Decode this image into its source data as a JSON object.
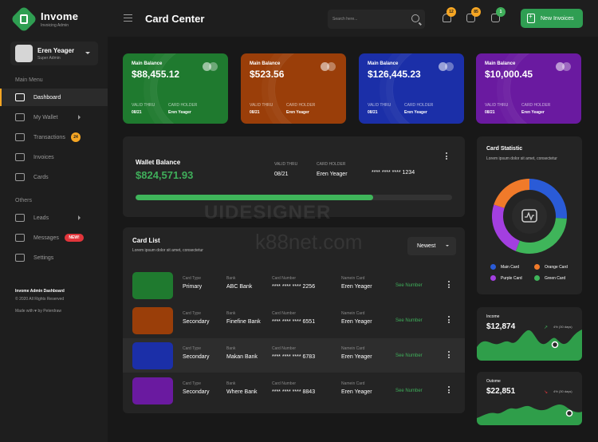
{
  "brand": {
    "name": "Invome",
    "subtitle": "Invoicing Admin"
  },
  "profile": {
    "name": "Eren Yeager",
    "role": "Super Admin"
  },
  "sidebar": {
    "main_menu_label": "Main Menu",
    "main_items": [
      {
        "label": "Dashboard",
        "icon": "dashboard-icon",
        "active": true
      },
      {
        "label": "My Wallet",
        "icon": "wallet-icon"
      },
      {
        "label": "Transactions",
        "icon": "transactions-icon",
        "badge": "24"
      },
      {
        "label": "Invoices",
        "icon": "invoice-icon"
      },
      {
        "label": "Cards",
        "icon": "card-icon"
      }
    ],
    "others_label": "Others",
    "other_items": [
      {
        "label": "Leads",
        "icon": "user-icon"
      },
      {
        "label": "Messages",
        "icon": "message-icon",
        "badge": "NEW!"
      },
      {
        "label": "Settings",
        "icon": "settings-icon"
      }
    ],
    "footer_title": "Invome Admin Dashboard",
    "footer_copy": "© 2020 All Rights Reserved",
    "footer_made": "Made with ♥ by Peterdraw"
  },
  "header": {
    "title": "Card Center",
    "search_placeholder": "Search here...",
    "notification_count": "12",
    "mail_count": "85",
    "cart_count": "1",
    "new_invoice_label": "New Invoices"
  },
  "cards": [
    {
      "label": "Main Balance",
      "amount": "$88,455.12",
      "valid_label": "VALID THRU",
      "valid": "08/21",
      "holder_label": "CARD HOLDER",
      "holder": "Eren Yeager",
      "color": "#1f7a2f"
    },
    {
      "label": "Main Balance",
      "amount": "$523.56",
      "valid_label": "VALID THRU",
      "valid": "08/21",
      "holder_label": "CARD HOLDER",
      "holder": "Eren Yeager",
      "color": "#9a3e09"
    },
    {
      "label": "Main Balance",
      "amount": "$126,445.23",
      "valid_label": "VALID THRU",
      "valid": "08/21",
      "holder_label": "CARD HOLDER",
      "holder": "Eren Yeager",
      "color": "#1b2fa8"
    },
    {
      "label": "Main Balance",
      "amount": "$10,000.45",
      "valid_label": "VALID THRU",
      "valid": "08/21",
      "holder_label": "CARD HOLDER",
      "holder": "Eren Yeager",
      "color": "#6a1aa0"
    }
  ],
  "wallet": {
    "title": "Wallet Balance",
    "amount": "$824,571.93",
    "valid_label": "VALID THRU",
    "valid": "08/21",
    "holder_label": "CARD HOLDER",
    "holder": "Eren Yeager",
    "card_number": "**** **** **** 1234",
    "progress": 0.75
  },
  "card_list": {
    "title": "Card List",
    "subtitle": "Lorem ipsum dolor sit amet, consectetur",
    "sort_label": "Newest",
    "col_type": "Card Type",
    "col_bank": "Bank",
    "col_number": "Card Number",
    "col_name": "Namein Card",
    "see_label": "See Number",
    "rows": [
      {
        "type": "Primary",
        "bank": "ABC Bank",
        "number": "**** **** **** 2256",
        "name": "Eren Yeager",
        "color": "#1f7a2f"
      },
      {
        "type": "Secondary",
        "bank": "Finefine Bank",
        "number": "**** **** **** 6551",
        "name": "Eren Yeager",
        "color": "#9a3e09"
      },
      {
        "type": "Secondary",
        "bank": "Makan Bank",
        "number": "**** **** **** 6783",
        "name": "Eren Yeager",
        "color": "#1b2fa8"
      },
      {
        "type": "Secondary",
        "bank": "Where Bank",
        "number": "**** **** **** 8843",
        "name": "Eren Yeager",
        "color": "#6a1aa0"
      }
    ]
  },
  "card_statistic": {
    "title": "Card Statistic",
    "subtitle": "Lorem ipsum dolor sit amet, consectetur",
    "legend": [
      {
        "label": "Main Card",
        "color": "#2a5bd7"
      },
      {
        "label": "Orange Card",
        "color": "#f07a2a"
      },
      {
        "label": "Purple Card",
        "color": "#a33fe0"
      },
      {
        "label": "Green Card",
        "color": "#3fb55a"
      }
    ]
  },
  "chart_data": {
    "type": "pie",
    "categories": [
      "Main Card",
      "Green Card",
      "Purple Card",
      "Orange Card"
    ],
    "values": [
      26,
      30,
      24,
      20
    ]
  },
  "income": {
    "title": "Income",
    "amount": "$12,874",
    "note": "4% (30 days)"
  },
  "outcome": {
    "title": "Outome",
    "amount": "$22,851",
    "note": "4% (30 days)"
  }
}
